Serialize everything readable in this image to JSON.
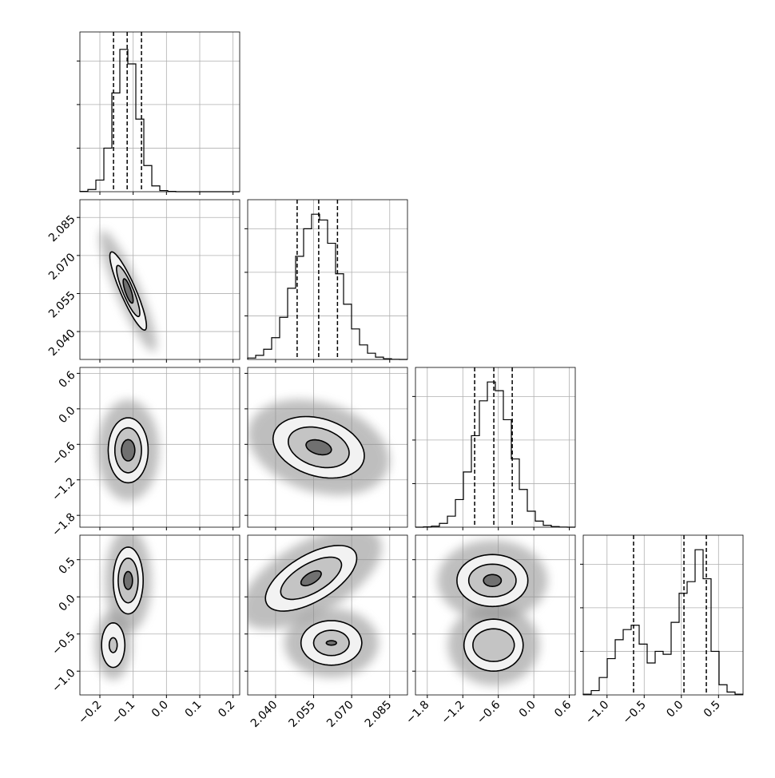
{
  "chart_data": {
    "type": "corner",
    "grid": true,
    "hist_ylim": [
      0,
      1.1
    ],
    "hist_yticks": [
      0.3,
      0.6,
      0.9
    ],
    "params": [
      {
        "xlim": [
          -0.26,
          0.22
        ],
        "xticks": [
          {
            "value": -0.2,
            "label": "−0.2"
          },
          {
            "value": -0.1,
            "label": "−0.1"
          },
          {
            "value": 0,
            "label": "0.0"
          },
          0.1,
          0.2
        ],
        "bins": [
          -0.26,
          -0.236,
          -0.212,
          -0.188,
          -0.164,
          -0.14,
          -0.116,
          -0.092,
          -0.068,
          -0.044,
          -0.02,
          0.004,
          0.028,
          0.052,
          0.076,
          0.1,
          0.124,
          0.148,
          0.172,
          0.196,
          0.22
        ],
        "counts": [
          0.002,
          0.015,
          0.08,
          0.3,
          0.68,
          0.98,
          0.88,
          0.5,
          0.18,
          0.04,
          0.008,
          0.002,
          0,
          0,
          0,
          0,
          0,
          0,
          0,
          0
        ],
        "quantiles": [
          -0.159,
          -0.118,
          -0.075
        ]
      },
      {
        "xlim": [
          2.029,
          2.092
        ],
        "xticks": [
          {
            "value": 2.04,
            "label": "2.040"
          },
          2.055,
          {
            "value": 2.07,
            "label": "2.070"
          },
          2.085
        ],
        "bins": [
          2.029,
          2.03215,
          2.0353,
          2.03845,
          2.0416,
          2.04475,
          2.0479,
          2.05105,
          2.0542,
          2.05735,
          2.0605,
          2.06365,
          2.0668,
          2.06995,
          2.0731,
          2.07625,
          2.0794,
          2.08255,
          2.0857,
          2.08885,
          2.092
        ],
        "counts": [
          0.01,
          0.028,
          0.07,
          0.15,
          0.29,
          0.49,
          0.71,
          0.9,
          1.0,
          0.96,
          0.8,
          0.59,
          0.38,
          0.21,
          0.1,
          0.043,
          0.016,
          0.005,
          0.001,
          0
        ],
        "quantiles": [
          2.0485,
          2.057,
          2.0644
        ]
      },
      {
        "xlim": [
          -2.0,
          0.7
        ],
        "xticks": [
          {
            "value": -1.8,
            "label": "−1.8"
          },
          {
            "value": -1.2,
            "label": "−1.2"
          },
          {
            "value": -0.6,
            "label": "−0.6"
          },
          {
            "value": 0,
            "label": "0.0"
          },
          0.6
        ],
        "bins": [
          -2.0,
          -1.865,
          -1.73,
          -1.595,
          -1.46,
          -1.325,
          -1.19,
          -1.055,
          -0.92,
          -0.785,
          -0.65,
          -0.515,
          -0.38,
          -0.245,
          -0.11,
          0.025,
          0.16,
          0.295,
          0.43,
          0.565,
          0.7
        ],
        "counts": [
          0,
          0.002,
          0.007,
          0.026,
          0.076,
          0.19,
          0.38,
          0.63,
          0.87,
          1.0,
          0.94,
          0.74,
          0.47,
          0.26,
          0.11,
          0.042,
          0.013,
          0.004,
          0.001,
          0
        ],
        "quantiles": [
          -1.0,
          -0.676,
          -0.365
        ]
      },
      {
        "xlim": [
          -1.32,
          0.83
        ],
        "xticks": [
          {
            "value": -1.0,
            "label": "−1.0"
          },
          {
            "value": -0.5,
            "label": "−0.5"
          },
          {
            "value": 0,
            "label": "0.0"
          },
          0.5
        ],
        "bins": [
          -1.32,
          -1.2125,
          -1.105,
          -0.9975,
          -0.89,
          -0.7825,
          -0.675,
          -0.5675,
          -0.46,
          -0.3525,
          -0.245,
          -0.1375,
          -0.03,
          0.0775,
          0.185,
          0.2925,
          0.4,
          0.5075,
          0.615,
          0.7225,
          0.83
        ],
        "counts": [
          0.005,
          0.03,
          0.12,
          0.25,
          0.38,
          0.45,
          0.48,
          0.35,
          0.22,
          0.3,
          0.28,
          0.5,
          0.7,
          0.78,
          1.0,
          0.8,
          0.3,
          0.07,
          0.02,
          0.005
        ],
        "quantiles": [
          -0.643,
          0.035,
          0.336
        ]
      }
    ],
    "panels": [
      [
        {
          "blobs": [
            {
              "cx": -0.115,
              "cy": 2.056,
              "k": -0.25,
              "levels": [
                {
                  "rx": 0.055,
                  "ry": 0.007
                },
                {
                  "rx": 0.035,
                  "ry": 0.005
                },
                {
                  "rx": 0.015,
                  "ry": 0.003
                }
              ]
            }
          ]
        }
      ],
      [
        {
          "blobs": [
            {
              "cx": -0.115,
              "cy": -0.7,
              "k": 0,
              "levels": [
                {
                  "rx": 0.06,
                  "ry": 0.55
                },
                {
                  "rx": 0.04,
                  "ry": 0.38
                },
                {
                  "rx": 0.02,
                  "ry": 0.18
                }
              ]
            }
          ]
        },
        {
          "blobs": [
            {
              "cx": 2.057,
              "cy": -0.65,
              "k": -8,
              "levels": [
                {
                  "rx": 0.018,
                  "ry": 0.5
                },
                {
                  "rx": 0.012,
                  "ry": 0.33
                },
                {
                  "rx": 0.005,
                  "ry": 0.12
                }
              ]
            }
          ]
        }
      ],
      [
        {
          "blobs": [
            {
              "cx": -0.115,
              "cy": 0.22,
              "k": 0,
              "levels": [
                {
                  "rx": 0.045,
                  "ry": 0.45
                },
                {
                  "rx": 0.03,
                  "ry": 0.3
                },
                {
                  "rx": 0.013,
                  "ry": 0.12
                }
              ]
            },
            {
              "cx": -0.16,
              "cy": -0.65,
              "k": 0,
              "levels": [
                {
                  "rx": 0.035,
                  "ry": 0.3
                },
                {
                  "rx": 0.012,
                  "ry": 0.1
                }
              ]
            }
          ]
        },
        {
          "blobs": [
            {
              "cx": 2.054,
              "cy": 0.25,
              "k": 15,
              "levels": [
                {
                  "rx": 0.018,
                  "ry": 0.35
                },
                {
                  "rx": 0.012,
                  "ry": 0.22
                },
                {
                  "rx": 0.004,
                  "ry": 0.08
                }
              ]
            },
            {
              "cx": 2.062,
              "cy": -0.62,
              "k": 0,
              "levels": [
                {
                  "rx": 0.012,
                  "ry": 0.3
                },
                {
                  "rx": 0.007,
                  "ry": 0.17
                },
                {
                  "rx": 0.002,
                  "ry": 0.03
                }
              ]
            }
          ]
        },
        {
          "blobs": [
            {
              "cx": -0.7,
              "cy": 0.22,
              "k": 0,
              "levels": [
                {
                  "rx": 0.6,
                  "ry": 0.35
                },
                {
                  "rx": 0.4,
                  "ry": 0.22
                },
                {
                  "rx": 0.15,
                  "ry": 0.08
                }
              ]
            },
            {
              "cx": -0.68,
              "cy": -0.65,
              "k": 0,
              "levels": [
                {
                  "rx": 0.5,
                  "ry": 0.35
                },
                {
                  "rx": 0.35,
                  "ry": 0.22
                }
              ]
            }
          ]
        }
      ]
    ]
  }
}
